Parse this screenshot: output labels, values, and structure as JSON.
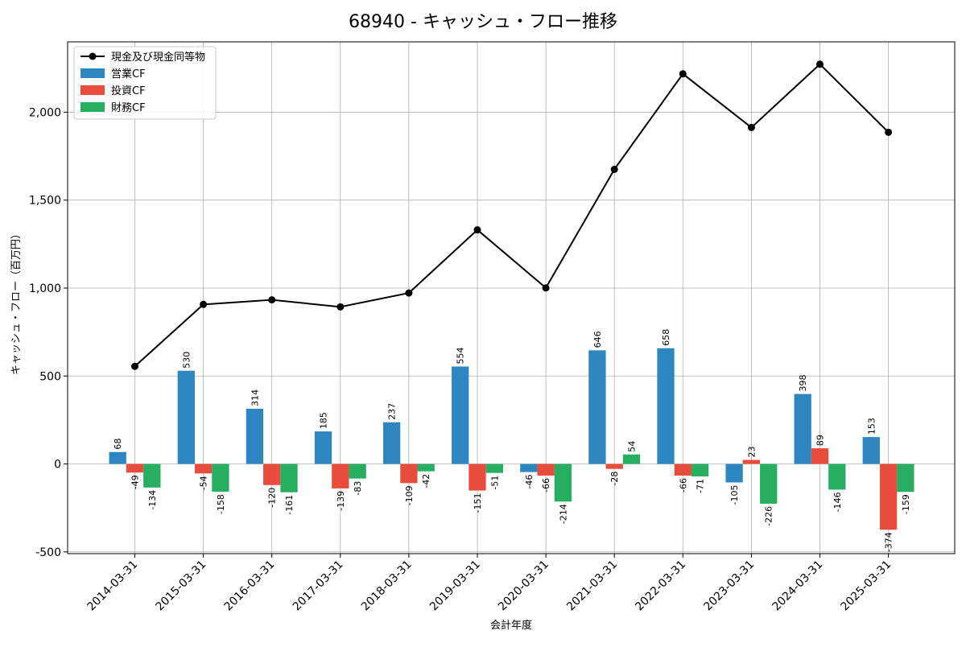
{
  "chart_data": {
    "type": "bar",
    "title": "68940 - キャッシュ・フロー推移",
    "xlabel": "会計年度",
    "ylabel": "キャッシュ・フロー（百万円）",
    "ylim": [
      -510,
      2400
    ],
    "yticks": [
      -500,
      0,
      500,
      1000,
      1500,
      2000
    ],
    "ytick_labels": [
      "-500",
      "0",
      "500",
      "1,000",
      "1,500",
      "2,000"
    ],
    "grid": true,
    "legend_position": "top-left",
    "categories": [
      "2014-03-31",
      "2015-03-31",
      "2016-03-31",
      "2017-03-31",
      "2018-03-31",
      "2019-03-31",
      "2020-03-31",
      "2021-03-31",
      "2022-03-31",
      "2023-03-31",
      "2024-03-31",
      "2025-03-31"
    ],
    "series": [
      {
        "name": "営業CF",
        "kind": "bar",
        "color": "#2e86c1",
        "values": [
          68,
          530,
          314,
          185,
          237,
          554,
          -46,
          646,
          658,
          -105,
          398,
          153
        ],
        "labels": [
          "68",
          "530",
          "314",
          "185",
          "237",
          "554",
          "-46",
          "646",
          "658",
          "-105",
          "398",
          "153"
        ]
      },
      {
        "name": "投資CF",
        "kind": "bar",
        "color": "#e74c3c",
        "values": [
          -49,
          -54,
          -120,
          -139,
          -109,
          -151,
          -66,
          -28,
          -66,
          23,
          89,
          -374
        ],
        "labels": [
          "-49",
          "-54",
          "-120",
          "-139",
          "-109",
          "-151",
          "-66",
          "-28",
          "-66",
          "23",
          "89",
          "-374"
        ]
      },
      {
        "name": "財務CF",
        "kind": "bar",
        "color": "#27ae60",
        "values": [
          -134,
          -158,
          -161,
          -83,
          -42,
          -51,
          -214,
          54,
          -71,
          -226,
          -146,
          -159
        ],
        "labels": [
          "-134",
          "-158",
          "-161",
          "-83",
          "-42",
          "-51",
          "-214",
          "54",
          "-71",
          "-226",
          "-146",
          "-159"
        ]
      },
      {
        "name": "現金及び現金同等物",
        "kind": "line",
        "color": "#000000",
        "values": [
          555,
          907,
          933,
          893,
          972,
          1331,
          1001,
          1675,
          2218,
          1913,
          2273,
          1886
        ]
      }
    ],
    "legend_order": [
      "現金及び現金同等物",
      "営業CF",
      "投資CF",
      "財務CF"
    ]
  }
}
